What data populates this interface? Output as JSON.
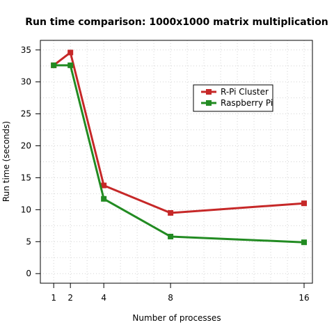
{
  "chart_data": {
    "type": "line",
    "title": "Run time comparison: 1000x1000 matrix multiplication",
    "xlabel": "Number of processes",
    "ylabel": "Run time (seconds)",
    "x": [
      1,
      2,
      4,
      8,
      16
    ],
    "x_ticks": [
      1,
      2,
      4,
      8,
      16
    ],
    "y_ticks": [
      0,
      5,
      10,
      15,
      20,
      25,
      30,
      35
    ],
    "xlim": [
      0.2,
      16.5
    ],
    "ylim": [
      -1.5,
      36.5
    ],
    "grid": true,
    "legend_position": "top-right",
    "series": [
      {
        "name": "R-Pi Cluster",
        "color": "#c62828",
        "values": [
          32.6,
          34.6,
          13.8,
          9.5,
          11.0
        ]
      },
      {
        "name": "Raspberry Pi",
        "color": "#228b22",
        "values": [
          32.6,
          32.6,
          11.7,
          5.8,
          4.9
        ]
      }
    ]
  }
}
